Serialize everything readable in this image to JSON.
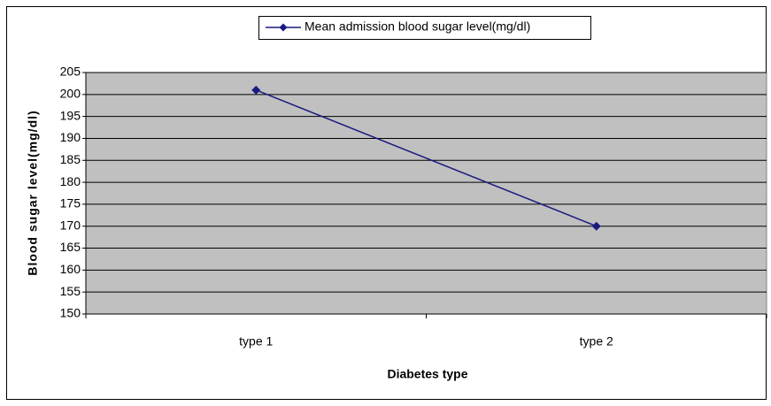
{
  "chart_data": {
    "type": "line",
    "categories": [
      "type 1",
      "type 2"
    ],
    "series": [
      {
        "name": "Mean admission blood sugar level(mg/dl)",
        "color": "#1a1a80",
        "values": [
          201,
          170
        ]
      }
    ],
    "xlabel": "Diabetes type",
    "ylabel": "Blood sugar level(mg/dl)",
    "ylim": [
      150,
      205
    ],
    "yticks": [
      150,
      155,
      160,
      165,
      170,
      175,
      180,
      185,
      190,
      195,
      200,
      205
    ],
    "grid": true,
    "legend": "top"
  }
}
